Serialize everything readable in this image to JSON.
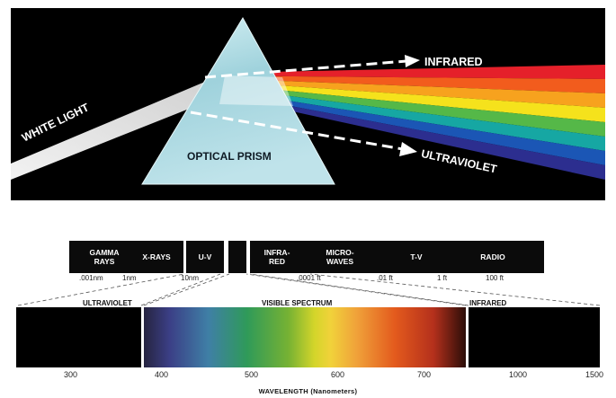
{
  "prism": {
    "white_light": "WHITE LIGHT",
    "optical_prism": "OPTICAL PRISM",
    "infrared": "INFRARED",
    "ultraviolet": "ULTRAVIOLET",
    "band_colors": [
      "#e5202a",
      "#f25c1d",
      "#f7a21e",
      "#f5e21c",
      "#55b848",
      "#16a7a3",
      "#1b56b5",
      "#2c2e8f"
    ]
  },
  "em_spectrum": {
    "bands": [
      "GAMMA RAYS",
      "X-RAYS",
      "U-V",
      "INFRA-RED",
      "MICRO-WAVES",
      "T-V",
      "RADIO"
    ],
    "ticks": [
      ".001nm",
      "1nm",
      "10nm",
      ".0001 ft",
      ".01 ft",
      "1 ft",
      "100 ft"
    ]
  },
  "visible": {
    "ultraviolet_title": "ULTRAVIOLET",
    "visible_title": "VISIBLE SPECTRUM",
    "infrared_title": "INFRARED",
    "axis_labels": [
      "300",
      "400",
      "500",
      "600",
      "700",
      "1000",
      "1500"
    ],
    "axis_title": "WAVELENGTH (Nanometers)"
  }
}
